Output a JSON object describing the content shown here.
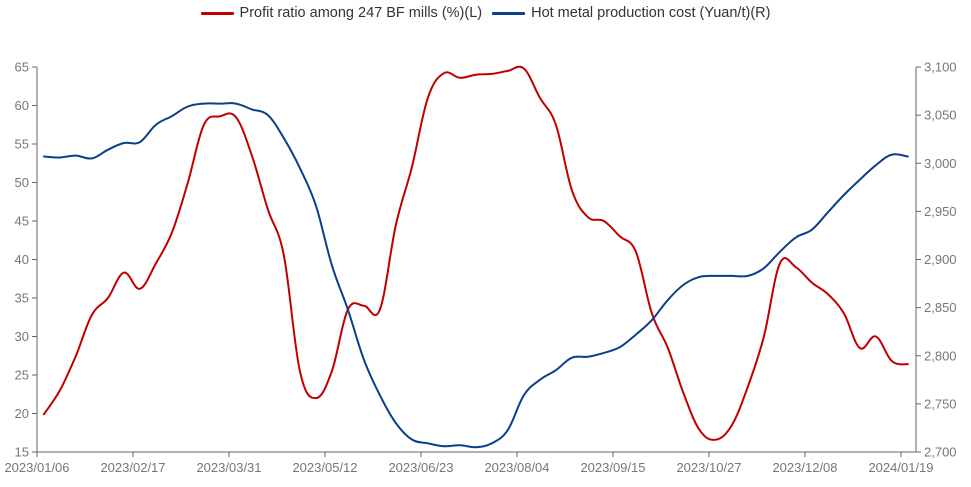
{
  "chart_data": {
    "type": "line",
    "title": "",
    "legend_position": "top-center",
    "grid": false,
    "x_axis": {
      "tick_labels": [
        "2023/01/06",
        "2023/02/17",
        "2023/03/31",
        "2023/05/12",
        "2023/06/23",
        "2023/08/04",
        "2023/09/15",
        "2023/10/27",
        "2023/12/08",
        "2024/01/19"
      ],
      "range": [
        "2023/01/06",
        "2024/01/26"
      ]
    },
    "y_left": {
      "label": "Profit ratio among 247 BF mills (%)",
      "range": [
        15,
        65
      ],
      "ticks": [
        "15",
        "20",
        "25",
        "30",
        "35",
        "40",
        "45",
        "50",
        "55",
        "60",
        "65"
      ]
    },
    "y_right": {
      "label": "Hot metal production cost (Yuan/t)",
      "range": [
        2700,
        3100
      ],
      "ticks": [
        "2,700",
        "2,750",
        "2,800",
        "2,850",
        "2,900",
        "2,950",
        "3,000",
        "3,050",
        "3,100"
      ]
    },
    "x": [
      "2023/01/09",
      "2023/01/16",
      "2023/01/23",
      "2023/01/30",
      "2023/02/06",
      "2023/02/13",
      "2023/02/20",
      "2023/02/27",
      "2023/03/06",
      "2023/03/13",
      "2023/03/20",
      "2023/03/27",
      "2023/04/03",
      "2023/04/10",
      "2023/04/17",
      "2023/04/24",
      "2023/05/01",
      "2023/05/08",
      "2023/05/15",
      "2023/05/22",
      "2023/05/29",
      "2023/06/05",
      "2023/06/12",
      "2023/06/19",
      "2023/06/26",
      "2023/07/03",
      "2023/07/10",
      "2023/07/17",
      "2023/07/24",
      "2023/07/31",
      "2023/08/07",
      "2023/08/14",
      "2023/08/21",
      "2023/08/28",
      "2023/09/04",
      "2023/09/11",
      "2023/09/18",
      "2023/09/25",
      "2023/10/02",
      "2023/10/09",
      "2023/10/16",
      "2023/10/23",
      "2023/10/30",
      "2023/11/06",
      "2023/11/13",
      "2023/11/20",
      "2023/11/27",
      "2023/12/04",
      "2023/12/11",
      "2023/12/18",
      "2023/12/25",
      "2024/01/01",
      "2024/01/08",
      "2024/01/15",
      "2024/01/22"
    ],
    "series": [
      {
        "name": "Profit ratio among 247 BF mills (%)(L)",
        "axis": "left",
        "color": "#C00000",
        "values": [
          19.9,
          23.0,
          27.5,
          32.8,
          35.0,
          38.3,
          36.2,
          39.5,
          43.5,
          50.0,
          57.5,
          58.6,
          58.5,
          53.5,
          46.5,
          40.5,
          25.5,
          22.0,
          25.5,
          33.5,
          34.0,
          33.5,
          44.5,
          52.0,
          61.0,
          64.2,
          63.6,
          64.0,
          64.1,
          64.5,
          64.8,
          61.0,
          57.5,
          49.0,
          45.5,
          45.0,
          43.0,
          41.0,
          33.0,
          28.5,
          22.5,
          17.8,
          16.6,
          18.5,
          23.5,
          30.0,
          39.5,
          39.0,
          37.0,
          35.5,
          33.0,
          28.5,
          30.0,
          26.8,
          26.4
        ]
      },
      {
        "name": "Hot metal production cost (Yuan/t)(R)",
        "axis": "right",
        "color": "#0B3F8C",
        "values": [
          3007,
          3006,
          3008,
          3005,
          3014,
          3021,
          3022,
          3040,
          3049,
          3059,
          3062,
          3062,
          3062,
          3056,
          3050,
          3026,
          2995,
          2956,
          2894,
          2848,
          2796,
          2759,
          2730,
          2713,
          2709,
          2706,
          2707,
          2705,
          2709,
          2723,
          2759,
          2775,
          2785,
          2798,
          2799,
          2803,
          2809,
          2822,
          2837,
          2858,
          2874,
          2882,
          2883,
          2883,
          2883,
          2891,
          2908,
          2923,
          2931,
          2949,
          2967,
          2983,
          2998,
          3009,
          3007
        ]
      }
    ]
  }
}
